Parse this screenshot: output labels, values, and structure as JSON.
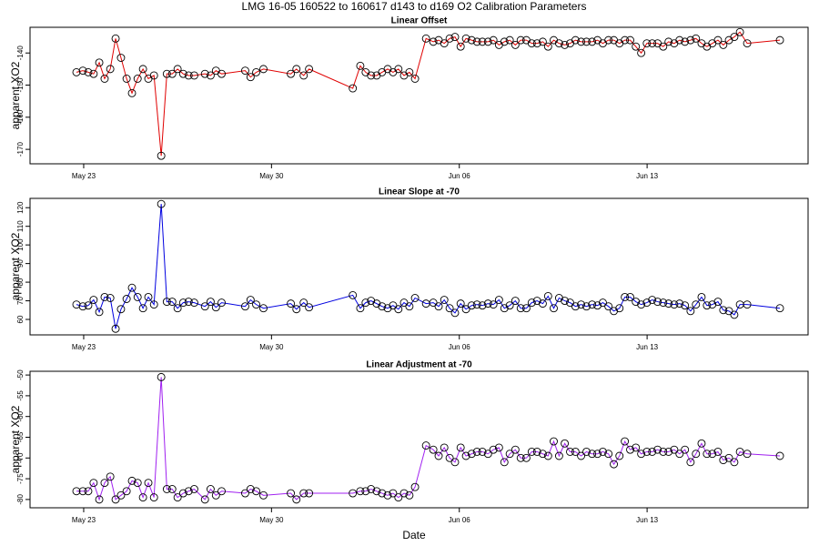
{
  "title": "LMG  16-05    160522 to 160617    d143 to d169   O2 Calibration Parameters",
  "x_label": "Date",
  "chart_data": [
    {
      "type": "line",
      "title": "Linear Offset",
      "y_label": "apparent XO2",
      "color": "#e00000",
      "marker": "circle",
      "x": [
        143.73,
        143.97,
        144.17,
        144.37,
        144.58,
        144.78,
        144.99,
        145.19,
        145.39,
        145.6,
        145.8,
        146.01,
        146.21,
        146.41,
        146.62,
        146.89,
        147.1,
        147.3,
        147.5,
        147.71,
        147.91,
        148.12,
        148.52,
        148.73,
        148.93,
        149.14,
        150.02,
        150.22,
        150.43,
        150.7,
        151.72,
        151.93,
        152.2,
        152.4,
        154.03,
        154.31,
        154.51,
        154.71,
        154.92,
        155.12,
        155.33,
        155.53,
        155.73,
        155.94,
        156.14,
        156.35,
        156.76,
        157.03,
        157.23,
        157.44,
        157.64,
        157.84,
        158.05,
        158.25,
        158.46,
        158.66,
        158.86,
        159.07,
        159.27,
        159.48,
        159.68,
        159.88,
        160.09,
        160.29,
        160.5,
        160.7,
        160.9,
        161.11,
        161.31,
        161.52,
        161.72,
        161.93,
        162.13,
        162.33,
        162.54,
        162.74,
        162.95,
        163.15,
        163.35,
        163.56,
        163.76,
        163.97,
        164.17,
        164.37,
        164.58,
        164.78,
        164.99,
        165.19,
        165.39,
        165.6,
        165.8,
        166.01,
        166.21,
        166.41,
        166.62,
        166.82,
        167.03,
        167.23,
        167.43,
        167.64,
        167.84,
        168.05,
        168.25,
        168.46,
        168.73,
        169.95
      ],
      "values": [
        -146,
        -145.5,
        -146,
        -146.5,
        -143,
        -148,
        -145,
        -135.5,
        -141.5,
        -148,
        -152.5,
        -148,
        -145,
        -148,
        -147,
        -172,
        -146.5,
        -146.5,
        -145,
        -146.5,
        -147,
        -147,
        -146.5,
        -147,
        -145.5,
        -146.5,
        -145.5,
        -147.5,
        -146,
        -145,
        -146.5,
        -145,
        -147,
        -145,
        -151,
        -144,
        -146,
        -147,
        -147,
        -146,
        -145,
        -146,
        -145,
        -147,
        -146,
        -148,
        -135.5,
        -136.5,
        -136,
        -137,
        -135.5,
        -135,
        -138,
        -135.5,
        -136,
        -136.5,
        -136.5,
        -136.5,
        -136,
        -137.5,
        -136.5,
        -136,
        -137.5,
        -136,
        -136,
        -137,
        -137,
        -136.5,
        -138,
        -136,
        -137,
        -137.5,
        -137,
        -136,
        -136.5,
        -136.5,
        -136.5,
        -136,
        -137,
        -136,
        -136,
        -137,
        -136,
        -136,
        -138,
        -140,
        -137,
        -137,
        -137,
        -138,
        -136.5,
        -137,
        -136,
        -136.5,
        -136,
        -135.5,
        -137,
        -138,
        -137,
        -136,
        -137.5,
        -136,
        -135,
        -133.5,
        -137,
        -136
      ],
      "xlim": [
        142,
        171
      ],
      "xticks": [
        {
          "value": 144,
          "label": "May 23"
        },
        {
          "value": 151,
          "label": "May 30"
        },
        {
          "value": 158,
          "label": "Jun 06"
        },
        {
          "value": 165,
          "label": "Jun 13"
        }
      ],
      "ylim": [
        -174.5,
        -132
      ],
      "yticks": [
        -140,
        -150,
        -160,
        -170
      ]
    },
    {
      "type": "line",
      "title": "Linear Slope at -70",
      "y_label": "apparent XO2",
      "color": "#0000e0",
      "marker": "circle",
      "x": [
        143.73,
        143.97,
        144.17,
        144.37,
        144.58,
        144.78,
        144.99,
        145.19,
        145.39,
        145.6,
        145.8,
        146.01,
        146.21,
        146.41,
        146.62,
        146.89,
        147.1,
        147.3,
        147.5,
        147.71,
        147.91,
        148.12,
        148.52,
        148.73,
        148.93,
        149.14,
        150.02,
        150.22,
        150.43,
        150.7,
        151.72,
        151.93,
        152.2,
        152.4,
        154.03,
        154.31,
        154.51,
        154.71,
        154.92,
        155.12,
        155.33,
        155.53,
        155.73,
        155.94,
        156.14,
        156.35,
        156.76,
        157.03,
        157.23,
        157.44,
        157.64,
        157.84,
        158.05,
        158.25,
        158.46,
        158.66,
        158.86,
        159.07,
        159.27,
        159.48,
        159.68,
        159.88,
        160.09,
        160.29,
        160.5,
        160.7,
        160.9,
        161.11,
        161.31,
        161.52,
        161.72,
        161.93,
        162.13,
        162.33,
        162.54,
        162.74,
        162.95,
        163.15,
        163.35,
        163.56,
        163.76,
        163.97,
        164.17,
        164.37,
        164.58,
        164.78,
        164.99,
        165.19,
        165.39,
        165.6,
        165.8,
        166.01,
        166.21,
        166.41,
        166.62,
        166.82,
        167.03,
        167.23,
        167.43,
        167.64,
        167.84,
        168.05,
        168.25,
        168.46,
        168.73,
        169.95
      ],
      "values": [
        68,
        67,
        67.5,
        70.5,
        64,
        72,
        71.5,
        55,
        65.5,
        71,
        77,
        72,
        66,
        72,
        68,
        122,
        69.5,
        69.5,
        66,
        69,
        69.5,
        69,
        67,
        69.5,
        66.5,
        69,
        67,
        70.5,
        68,
        66,
        68.5,
        65.5,
        69,
        66.5,
        73,
        66,
        69,
        70,
        68.5,
        67,
        66,
        67.5,
        65.5,
        69,
        67,
        71.5,
        68.5,
        69,
        67,
        70.5,
        66,
        63.5,
        68.5,
        65.5,
        67.5,
        68,
        67.5,
        68.5,
        68,
        70.5,
        66,
        67.5,
        70,
        66,
        66,
        69,
        70,
        68.5,
        72.5,
        66,
        71.5,
        70,
        69,
        67,
        68,
        67,
        68,
        67.5,
        69,
        67,
        64.5,
        66,
        72,
        72,
        69.5,
        68,
        69,
        70.5,
        69.5,
        69,
        68.5,
        68,
        68.5,
        67.5,
        64.5,
        68,
        72,
        67.5,
        68,
        69.5,
        65,
        64.5,
        62.5,
        68,
        68,
        66
      ],
      "xlim": [
        142,
        171
      ],
      "xticks": [
        {
          "value": 144,
          "label": "May 23"
        },
        {
          "value": 151,
          "label": "May 30"
        },
        {
          "value": 158,
          "label": "Jun 06"
        },
        {
          "value": 165,
          "label": "Jun 13"
        }
      ],
      "ylim": [
        51.7,
        125
      ],
      "yticks": [
        60,
        70,
        80,
        90,
        100,
        110,
        120
      ]
    },
    {
      "type": "line",
      "title": "Linear Adjustment at -70",
      "y_label": "apparent XO2",
      "color": "#a020f0",
      "marker": "circle",
      "x": [
        143.73,
        143.97,
        144.17,
        144.37,
        144.58,
        144.78,
        144.99,
        145.19,
        145.39,
        145.6,
        145.8,
        146.01,
        146.21,
        146.41,
        146.62,
        146.89,
        147.1,
        147.3,
        147.5,
        147.71,
        147.91,
        148.12,
        148.52,
        148.73,
        148.93,
        149.14,
        150.02,
        150.22,
        150.43,
        150.7,
        151.72,
        151.93,
        152.2,
        152.4,
        154.03,
        154.31,
        154.51,
        154.71,
        154.92,
        155.12,
        155.33,
        155.53,
        155.73,
        155.94,
        156.14,
        156.35,
        156.76,
        157.03,
        157.23,
        157.44,
        157.64,
        157.84,
        158.05,
        158.25,
        158.46,
        158.66,
        158.86,
        159.07,
        159.27,
        159.48,
        159.68,
        159.88,
        160.09,
        160.29,
        160.5,
        160.7,
        160.9,
        161.11,
        161.31,
        161.52,
        161.72,
        161.93,
        162.13,
        162.33,
        162.54,
        162.74,
        162.95,
        163.15,
        163.35,
        163.56,
        163.76,
        163.97,
        164.17,
        164.37,
        164.58,
        164.78,
        164.99,
        165.19,
        165.39,
        165.6,
        165.8,
        166.01,
        166.21,
        166.41,
        166.62,
        166.82,
        167.03,
        167.23,
        167.43,
        167.64,
        167.84,
        168.05,
        168.25,
        168.46,
        168.73,
        169.95
      ],
      "values": [
        -78,
        -78,
        -78,
        -76,
        -80,
        -76,
        -74.5,
        -80,
        -79,
        -78,
        -75.5,
        -76,
        -79.5,
        -76,
        -79.5,
        -50.5,
        -77.5,
        -77.5,
        -79.5,
        -78.5,
        -78,
        -77.5,
        -80,
        -77.5,
        -79,
        -78,
        -78.5,
        -77.5,
        -78,
        -79,
        -78.5,
        -80,
        -78.5,
        -78.5,
        -78.5,
        -78,
        -78,
        -77.5,
        -78,
        -78.5,
        -79,
        -78.5,
        -79.5,
        -78.5,
        -79,
        -77,
        -67,
        -68,
        -69.5,
        -67.5,
        -70,
        -71,
        -67.5,
        -69.5,
        -69,
        -68.5,
        -68.5,
        -69,
        -68,
        -67.5,
        -71,
        -69,
        -68,
        -70,
        -70,
        -68.5,
        -68.5,
        -69,
        -69.5,
        -66,
        -69.5,
        -66.5,
        -68.5,
        -68.5,
        -69.5,
        -68.5,
        -69,
        -69,
        -68.5,
        -69,
        -71.5,
        -69.5,
        -66,
        -68,
        -67.5,
        -69,
        -68.5,
        -68.5,
        -68,
        -68.5,
        -68.5,
        -68,
        -69,
        -68,
        -71,
        -69,
        -66.5,
        -69,
        -69,
        -68.5,
        -70.5,
        -70,
        -71,
        -68.5,
        -69,
        -69.5
      ],
      "xlim": [
        142,
        171
      ],
      "xticks": [
        {
          "value": 144,
          "label": "May 23"
        },
        {
          "value": 151,
          "label": "May 30"
        },
        {
          "value": 158,
          "label": "Jun 06"
        },
        {
          "value": 165,
          "label": "Jun 13"
        }
      ],
      "ylim": [
        -82,
        -49.1
      ],
      "yticks": [
        -50,
        -55,
        -60,
        -65,
        -70,
        -75,
        -80
      ]
    }
  ]
}
